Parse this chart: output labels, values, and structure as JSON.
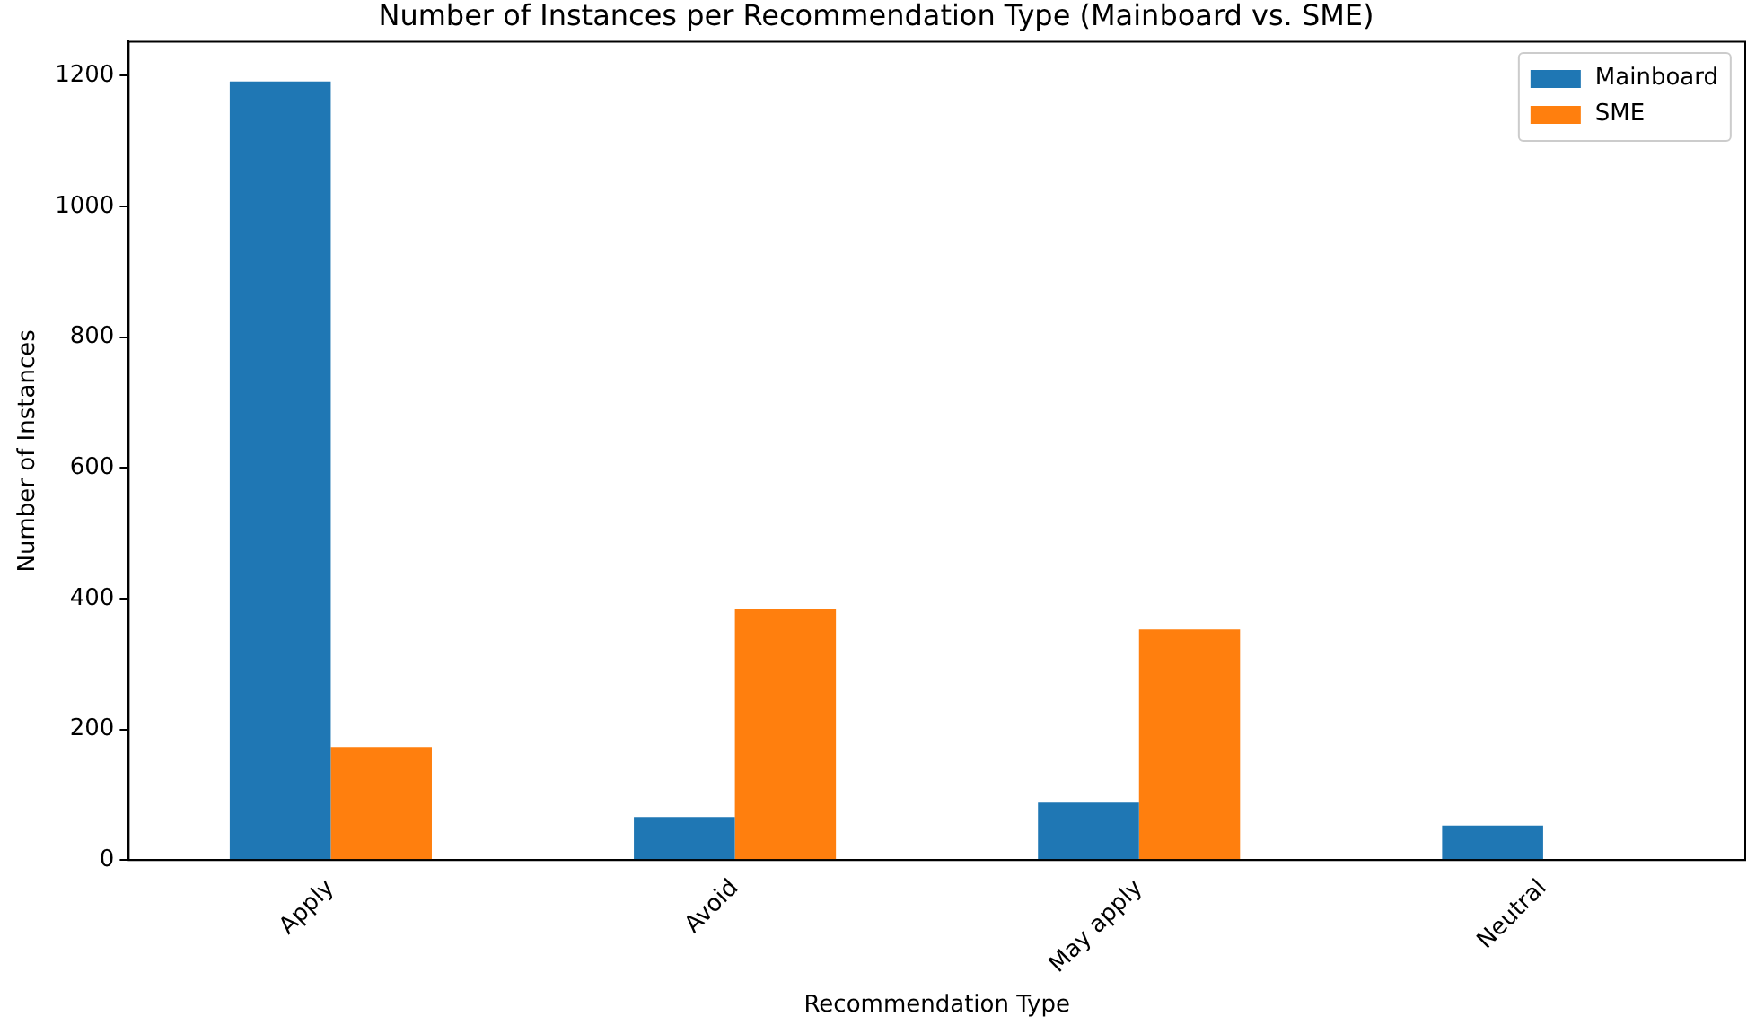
{
  "chart_data": {
    "type": "bar",
    "title": "Number of Instances per Recommendation Type (Mainboard vs. SME)",
    "xlabel": "Recommendation Type",
    "ylabel": "Number of Instances",
    "categories": [
      "Apply",
      "Avoid",
      "May apply",
      "Neutral"
    ],
    "series": [
      {
        "name": "Mainboard",
        "color": "#1f77b4",
        "values": [
          1191,
          66,
          88,
          53
        ]
      },
      {
        "name": "SME",
        "color": "#ff7f0e",
        "values": [
          173,
          385,
          353,
          0
        ]
      }
    ],
    "ylim": [
      0,
      1252
    ],
    "yticks": [
      0,
      200,
      400,
      600,
      800,
      1000,
      1200
    ],
    "grid": false,
    "legend": "top right"
  }
}
